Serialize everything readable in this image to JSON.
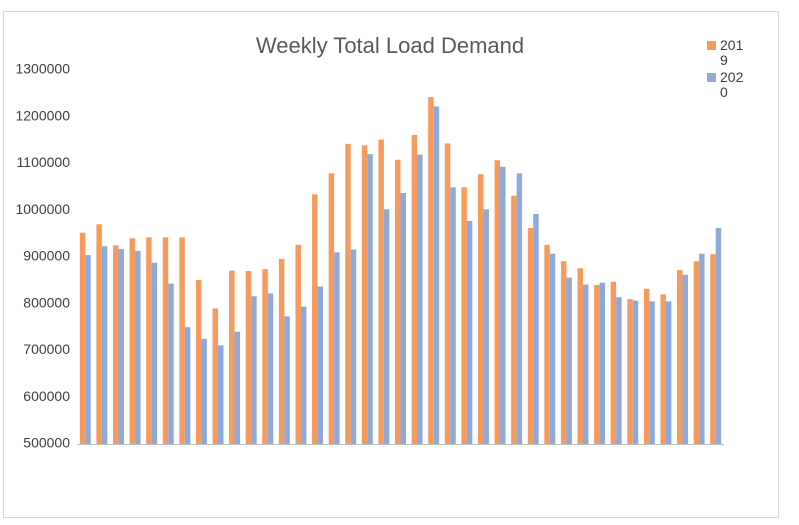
{
  "chart_data": {
    "type": "bar",
    "title": "Weekly Total Load Demand",
    "categories": [
      null,
      null,
      null,
      null,
      null,
      null,
      null,
      null,
      null,
      null,
      null,
      null,
      null,
      null,
      null,
      null,
      null,
      null,
      null,
      null,
      null,
      null,
      null,
      null,
      null,
      null,
      null,
      null,
      null,
      null,
      null,
      null,
      null,
      null,
      null,
      null,
      null,
      null,
      null
    ],
    "series": [
      {
        "name": "2019",
        "color": "#f79a5e",
        "values": [
          952000,
          970000,
          925000,
          940000,
          942000,
          942000,
          942000,
          851000,
          790000,
          871000,
          870000,
          874000,
          896000,
          926000,
          1034000,
          1079000,
          1142000,
          1139000,
          1151000,
          1108000,
          1161000,
          1242000,
          1143000,
          1049000,
          1077000,
          1107000,
          1031000,
          962000,
          926000,
          891000,
          876000,
          840000,
          847000,
          810000,
          832000,
          820000,
          872000,
          891000,
          906000
        ]
      },
      {
        "name": "2020",
        "color": "#8eaadb",
        "values": [
          904000,
          923000,
          917000,
          913000,
          888000,
          843000,
          750000,
          725000,
          711000,
          740000,
          816000,
          822000,
          773000,
          794000,
          837000,
          910000,
          916000,
          1120000,
          1002000,
          1037000,
          1119000,
          1222000,
          1049000,
          977000,
          1002000,
          1093000,
          1079000,
          992000,
          907000,
          856000,
          841000,
          845000,
          814000,
          807000,
          805000,
          805000,
          862000,
          907000,
          962000
        ]
      }
    ],
    "ylim": [
      500000,
      1300000
    ],
    "yticks": [
      500000,
      600000,
      700000,
      800000,
      900000,
      1000000,
      1100000,
      1200000,
      1300000
    ],
    "grid": false,
    "legend": "right"
  }
}
